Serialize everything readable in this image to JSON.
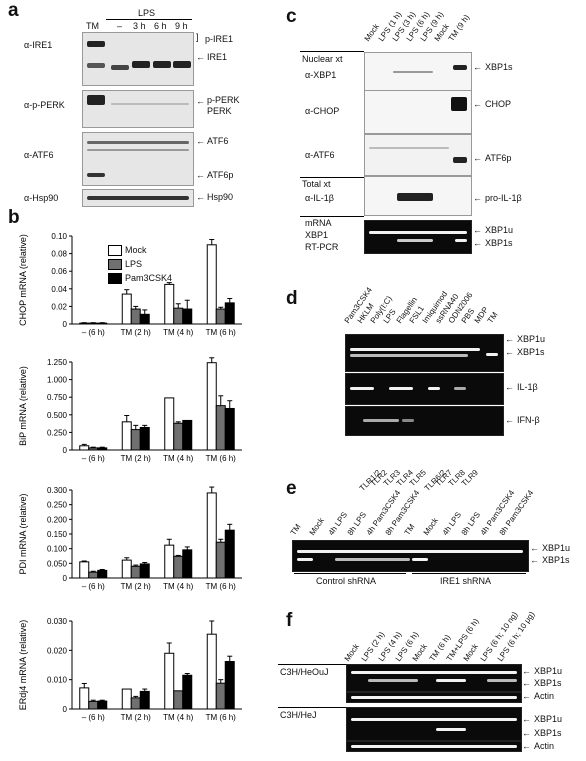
{
  "panels": {
    "a": {
      "label": "a",
      "treatment": "LPS",
      "lanes": [
        "TM",
        "–",
        "3 h",
        "6 h",
        "9 h"
      ],
      "rows": [
        {
          "antibody": "α-IRE1",
          "marks": [
            "p-IRE1",
            "IRE1"
          ]
        },
        {
          "antibody": "α-p-PERK",
          "marks": [
            "p-PERK",
            "PERK"
          ]
        },
        {
          "antibody": "α-ATF6",
          "marks": [
            "ATF6",
            "ATF6p"
          ]
        },
        {
          "antibody": "α-Hsp90",
          "marks": [
            "Hsp90"
          ]
        }
      ]
    },
    "c": {
      "label": "c",
      "lanes": [
        "Mock",
        "LPS (1 h)",
        "LPS (3 h)",
        "LPS (6 h)",
        "LPS (9 h)",
        "Mock",
        "TM (9 h)"
      ],
      "section_nuclear": "Nuclear xt",
      "section_total": "Total xt",
      "rows": [
        {
          "antibody": "α-XBP1",
          "marks": [
            "XBP1s"
          ]
        },
        {
          "antibody": "α-CHOP",
          "marks": [
            "CHOP"
          ]
        },
        {
          "antibody": "α-ATF6",
          "marks": [
            "ATF6p"
          ]
        },
        {
          "antibody": "α-IL-1β",
          "marks": [
            "pro-IL-1β"
          ]
        }
      ],
      "mrna_label_1": "mRNA",
      "mrna_label_2": "XBP1",
      "mrna_label_3": "RT-PCR",
      "mrna_marks": [
        "XBP1u",
        "XBP1s"
      ]
    },
    "d": {
      "label": "d",
      "lanes": [
        "Pam3CSK4",
        "HKLM",
        "Poly(I:C)",
        "LPS",
        "Flagellin",
        "FSL1",
        "Imiquimod",
        "ssRNA40",
        "ODN2006",
        "PBS",
        "MDP",
        "TM"
      ],
      "tlrs": [
        "TLR1/2",
        "TLR2",
        "TLR3",
        "TLR4",
        "TLR5",
        "TLR6/2",
        "TLR7",
        "TLR8",
        "TLR9"
      ],
      "gel_marks": [
        [
          "XBP1u",
          "XBP1s"
        ],
        [
          "IL-1β"
        ],
        [
          "IFN-β"
        ]
      ]
    },
    "e": {
      "label": "e",
      "lanes": [
        "TM",
        "Mock",
        "4h LPS",
        "8h LPS",
        "4h Pam3CSK4",
        "8h Pam3CSK4",
        "TM",
        "Mock",
        "4h LPS",
        "8h LPS",
        "4h Pam3CSK4",
        "8h Pam3CSK4"
      ],
      "groups": [
        "Control shRNA",
        "IRE1 shRNA"
      ],
      "marks": [
        "XBP1u",
        "XBP1s"
      ]
    },
    "f": {
      "label": "f",
      "lanes": [
        "Mock",
        "LPS (2 h)",
        "LPS (4 h)",
        "LPS (6 h)",
        "Mock",
        "TM (6 h)",
        "TM+LPS (6 h)",
        "Mock",
        "LPS (6 h; 10 ng)",
        "LPS (6 h; 10 μg)"
      ],
      "strains": [
        "C3H/HeOuJ",
        "C3H/HeJ"
      ],
      "marks": [
        "XBP1u",
        "XBP1s",
        "Actin"
      ]
    },
    "b": {
      "label": "b"
    }
  },
  "legend": [
    {
      "name": "Mock",
      "color": "#ffffff"
    },
    {
      "name": "LPS",
      "color": "#707070"
    },
    {
      "name": "Pam3CSK4",
      "color": "#000000"
    }
  ],
  "chart_data": [
    {
      "type": "bar",
      "ylabel": "CHOP mRNA (relative)",
      "categories": [
        "– (6 h)",
        "TM (2 h)",
        "TM (4 h)",
        "TM (6 h)"
      ],
      "yticks": [
        "0",
        "0.02",
        "0.04",
        "0.06",
        "0.08",
        "0.10"
      ],
      "ylim": [
        0,
        0.1
      ],
      "series": [
        {
          "name": "Mock",
          "values": [
            0.001,
            0.034,
            0.045,
            0.09
          ],
          "err": [
            0.0005,
            0.005,
            0.002,
            0.006
          ]
        },
        {
          "name": "LPS",
          "values": [
            0.001,
            0.017,
            0.018,
            0.017
          ],
          "err": [
            0.0005,
            0.003,
            0.005,
            0.002
          ]
        },
        {
          "name": "Pam3CSK4",
          "values": [
            0.001,
            0.011,
            0.017,
            0.024
          ],
          "err": [
            0.0005,
            0.005,
            0.01,
            0.005
          ]
        }
      ]
    },
    {
      "type": "bar",
      "ylabel": "BiP mRNA (relative)",
      "categories": [
        "– (6 h)",
        "TM (2 h)",
        "TM (4 h)",
        "TM (6 h)"
      ],
      "yticks": [
        "0",
        "0.250",
        "0.500",
        "0.750",
        "1.000",
        "1.250"
      ],
      "ylim": [
        0,
        1.25
      ],
      "series": [
        {
          "name": "Mock",
          "values": [
            0.06,
            0.4,
            0.74,
            1.24
          ],
          "err": [
            0.02,
            0.09,
            0.0,
            0.07
          ]
        },
        {
          "name": "LPS",
          "values": [
            0.03,
            0.29,
            0.38,
            0.63
          ],
          "err": [
            0.01,
            0.06,
            0.02,
            0.14
          ]
        },
        {
          "name": "Pam3CSK4",
          "values": [
            0.03,
            0.32,
            0.42,
            0.59
          ],
          "err": [
            0.01,
            0.03,
            0.0,
            0.11
          ]
        }
      ]
    },
    {
      "type": "bar",
      "ylabel": "PDI mRNA (relative)",
      "categories": [
        "– (6 h)",
        "TM (2 h)",
        "TM (4 h)",
        "TM (6 h)"
      ],
      "yticks": [
        "0",
        "0.050",
        "0.100",
        "0.150",
        "0.200",
        "0.250",
        "0.300"
      ],
      "ylim": [
        0,
        0.3
      ],
      "series": [
        {
          "name": "Mock",
          "values": [
            0.055,
            0.061,
            0.112,
            0.29
          ],
          "err": [
            0.003,
            0.008,
            0.02,
            0.02
          ]
        },
        {
          "name": "LPS",
          "values": [
            0.02,
            0.04,
            0.074,
            0.122
          ],
          "err": [
            0.003,
            0.004,
            0.003,
            0.01
          ]
        },
        {
          "name": "Pam3CSK4",
          "values": [
            0.026,
            0.048,
            0.096,
            0.163
          ],
          "err": [
            0.003,
            0.005,
            0.01,
            0.02
          ]
        }
      ]
    },
    {
      "type": "bar",
      "ylabel": "ERdj4 mRNA (relative)",
      "categories": [
        "– (6 h)",
        "TM (2 h)",
        "TM (4 h)",
        "TM (6 h)"
      ],
      "yticks": [
        "0",
        "0.010",
        "0.020",
        "0.030"
      ],
      "ylim": [
        0,
        0.03
      ],
      "series": [
        {
          "name": "Mock",
          "values": [
            0.0072,
            0.0068,
            0.019,
            0.0255
          ],
          "err": [
            0.0015,
            0.0,
            0.0035,
            0.0045
          ]
        },
        {
          "name": "LPS",
          "values": [
            0.0026,
            0.0038,
            0.0062,
            0.0088
          ],
          "err": [
            0.0004,
            0.0005,
            0.0,
            0.0012
          ]
        },
        {
          "name": "Pam3CSK4",
          "values": [
            0.0027,
            0.006,
            0.0115,
            0.0162
          ],
          "err": [
            0.0003,
            0.0008,
            0.0006,
            0.0018
          ]
        }
      ]
    }
  ]
}
